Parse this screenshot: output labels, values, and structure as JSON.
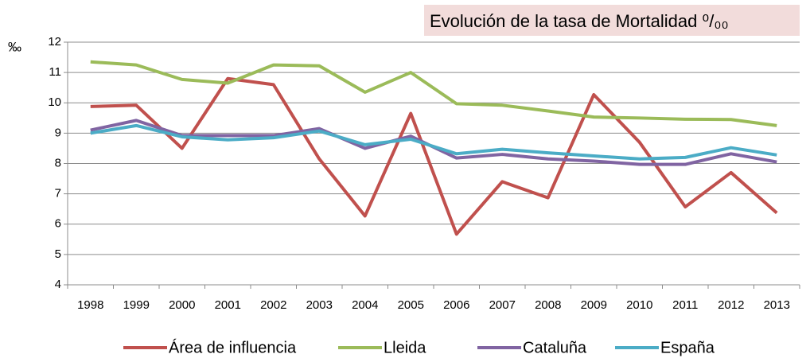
{
  "chart_data": {
    "type": "line",
    "title": "Evolución de la tasa de Mortalidad ⁰/₀₀",
    "y_label": "‰",
    "categories": [
      "1998",
      "1999",
      "2000",
      "2001",
      "2002",
      "2003",
      "2004",
      "2005",
      "2006",
      "2007",
      "2008",
      "2009",
      "2010",
      "2011",
      "2012",
      "2013"
    ],
    "series": [
      {
        "name": "Área de influencia",
        "color": "#c0504d",
        "values": [
          9.88,
          9.92,
          8.5,
          10.8,
          10.6,
          8.15,
          6.27,
          9.65,
          5.67,
          7.4,
          6.87,
          10.27,
          8.7,
          6.57,
          7.7,
          6.37
        ]
      },
      {
        "name": "Lleida",
        "color": "#9bbb59",
        "values": [
          11.35,
          11.25,
          10.77,
          10.65,
          11.25,
          11.22,
          10.35,
          11.0,
          9.97,
          9.92,
          9.73,
          9.53,
          9.5,
          9.46,
          9.45,
          9.25
        ]
      },
      {
        "name": "Cataluña",
        "color": "#8064a2",
        "values": [
          9.1,
          9.42,
          8.92,
          8.92,
          8.92,
          9.15,
          8.5,
          8.9,
          8.18,
          8.3,
          8.15,
          8.08,
          7.97,
          7.97,
          8.32,
          8.05
        ]
      },
      {
        "name": "España",
        "color": "#4bacc6",
        "values": [
          9.0,
          9.25,
          8.88,
          8.78,
          8.85,
          9.07,
          8.62,
          8.8,
          8.32,
          8.47,
          8.35,
          8.25,
          8.15,
          8.2,
          8.52,
          8.28
        ]
      }
    ],
    "ylim": [
      4,
      12
    ],
    "yticks": [
      4,
      5,
      6,
      7,
      8,
      9,
      10,
      11,
      12
    ],
    "grid": true,
    "legend": "bottom"
  }
}
